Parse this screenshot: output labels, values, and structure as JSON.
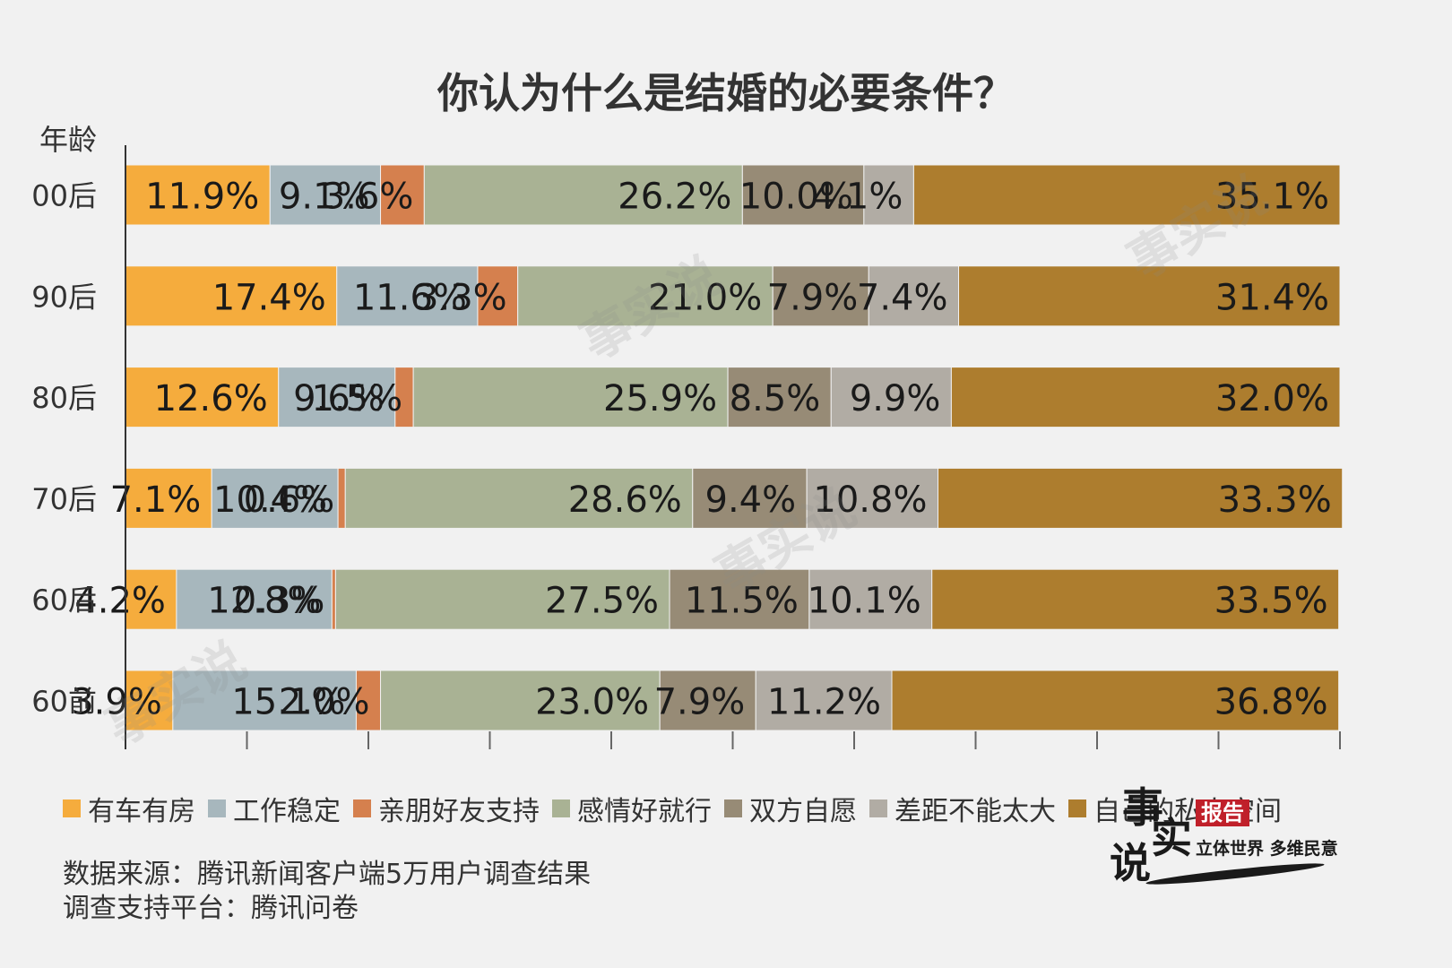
{
  "chart_data": {
    "type": "bar",
    "orientation": "horizontal",
    "stacked": true,
    "title": "你认为什么是结婚的必要条件？",
    "ylabel": "年龄",
    "categories": [
      "00后",
      "90后",
      "80后",
      "70后",
      "60后",
      "60前"
    ],
    "xlim": [
      0,
      100
    ],
    "legend_position": "bottom",
    "series": [
      {
        "name": "有车有房",
        "color": "#f5ac3d",
        "values": [
          11.9,
          17.4,
          12.6,
          7.1,
          4.2,
          3.9
        ],
        "labels": [
          "11.9%",
          "17.4%",
          "12.6%",
          "7.1%",
          "4.2%",
          "3.9%"
        ]
      },
      {
        "name": "工作稳定",
        "color": "#a7b7bd",
        "values": [
          9.1,
          11.6,
          9.6,
          10.4,
          12.8,
          15.1
        ],
        "labels": [
          "9.1%",
          "11.6%",
          "9.6%",
          "10.4%",
          "12.8%",
          "15.1%"
        ]
      },
      {
        "name": "亲朋好友支持",
        "color": "#d5804e",
        "values": [
          3.6,
          3.3,
          1.5,
          0.6,
          0.3,
          2.0
        ],
        "labels": [
          "3.6%",
          "3.3%",
          "1.5%",
          "0.6%",
          "0.3%",
          "2.0%"
        ]
      },
      {
        "name": "感情好就行",
        "color": "#a9b294",
        "values": [
          26.2,
          21.0,
          25.9,
          28.6,
          27.5,
          23.0
        ],
        "labels": [
          "26.2%",
          "21.0%",
          "25.9%",
          "28.6%",
          "27.5%",
          "23.0%"
        ]
      },
      {
        "name": "双方自愿",
        "color": "#978b76",
        "values": [
          10.0,
          7.9,
          8.5,
          9.4,
          11.5,
          7.9
        ],
        "labels": [
          "10.0%",
          "7.9%",
          "8.5%",
          "9.4%",
          "11.5%",
          "7.9%"
        ]
      },
      {
        "name": "差距不能太大",
        "color": "#b1aca4",
        "values": [
          4.1,
          7.4,
          9.9,
          10.8,
          10.1,
          11.2
        ],
        "labels": [
          "4.1%",
          "7.4%",
          "9.9%",
          "10.8%",
          "10.1%",
          "11.2%"
        ]
      },
      {
        "name": "自己的私人空间",
        "color": "#ad7d2e",
        "values": [
          35.1,
          31.4,
          32.0,
          33.3,
          33.5,
          36.8
        ],
        "labels": [
          "35.1%",
          "31.4%",
          "32.0%",
          "33.3%",
          "33.5%",
          "36.8%"
        ]
      }
    ]
  },
  "footer": {
    "source": "数据来源：腾讯新闻客户端5万用户调查结果",
    "platform": "调查支持平台：腾讯问卷"
  },
  "branding": {
    "logo_chars": [
      "事",
      "实",
      "说"
    ],
    "badge": "报告",
    "slogan": "立体世界 多维民意",
    "watermark_text": "事实说"
  }
}
